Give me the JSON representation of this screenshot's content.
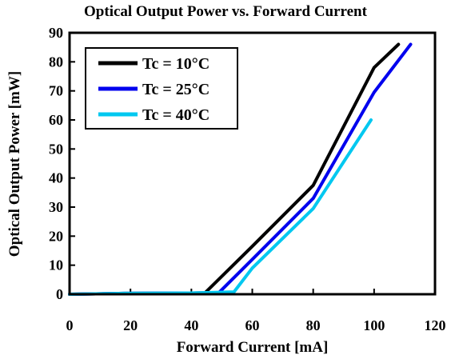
{
  "chart_data": {
    "type": "line",
    "title": "Optical Output Power vs. Forward Current",
    "xlabel": "Forward Current [mA]",
    "ylabel": "Optical Output Power [mW]",
    "xlim": [
      0,
      120
    ],
    "ylim": [
      0,
      90
    ],
    "xticks": [
      0,
      20,
      40,
      60,
      80,
      100,
      120
    ],
    "yticks": [
      0,
      10,
      20,
      30,
      40,
      50,
      60,
      70,
      80,
      90
    ],
    "grid": false,
    "legend_position": "top-left",
    "series": [
      {
        "name": "Tc = 10°C",
        "color": "#000000",
        "x": [
          0,
          18,
          40,
          44.5,
          60,
          80,
          100,
          108
        ],
        "y": [
          0,
          0.3,
          0.4,
          0.5,
          16.5,
          37.5,
          78,
          86
        ]
      },
      {
        "name": "Tc = 25°C",
        "color": "#0000ee",
        "x": [
          0,
          18,
          40,
          49,
          60,
          80,
          100,
          112
        ],
        "y": [
          0,
          0.3,
          0.4,
          0.5,
          12,
          33,
          69.5,
          86
        ]
      },
      {
        "name": "Tc = 40°C",
        "color": "#00c8f0",
        "x": [
          0,
          18,
          40,
          54,
          60,
          80,
          99
        ],
        "y": [
          0,
          0.3,
          0.4,
          0.8,
          9,
          29.5,
          60
        ]
      }
    ]
  }
}
